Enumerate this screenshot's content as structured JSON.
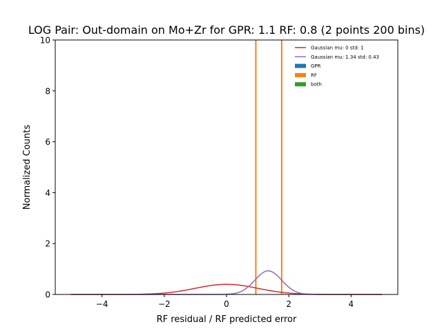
{
  "chart_data": {
    "type": "line",
    "title": "LOG Pair: Out-domain on Mo+Zr for GPR: 1.1 RF: 0.8 (2 points 200 bins)",
    "xlabel": "RF residual / RF predicted error",
    "ylabel": "Normalized Counts",
    "xlim": [
      -5.5,
      5.5
    ],
    "ylim": [
      0,
      10
    ],
    "xticks": [
      -4,
      -2,
      0,
      2,
      4
    ],
    "xtick_labels": [
      "−4",
      "−2",
      "0",
      "2",
      "4"
    ],
    "yticks": [
      0,
      2,
      4,
      6,
      8,
      10
    ],
    "ytick_labels": [
      "0",
      "2",
      "4",
      "6",
      "8",
      "10"
    ],
    "grid": false,
    "legend_position": "upper-right",
    "series": [
      {
        "name": "Gaussian mu: 0 std: 1",
        "kind": "gaussian",
        "mu": 0,
        "std": 1,
        "x_range": [
          -5,
          5
        ],
        "color": "#d62728"
      },
      {
        "name": "Gaussian mu: 1.34 std: 0.43",
        "kind": "gaussian",
        "mu": 1.34,
        "std": 0.43,
        "x_range": [
          -5,
          5
        ],
        "color": "#9467bd"
      }
    ],
    "histograms": [
      {
        "name": "GPR",
        "color": "#1f77b4",
        "bins": []
      },
      {
        "name": "RF",
        "color": "#ff7f0e",
        "bins": [
          {
            "x0": 0.93,
            "x1": 0.935,
            "height": 10
          },
          {
            "x0": 1.76,
            "x1": 1.765,
            "height": 10
          }
        ]
      },
      {
        "name": "both",
        "color": "#2ca02c",
        "bins": []
      }
    ]
  }
}
